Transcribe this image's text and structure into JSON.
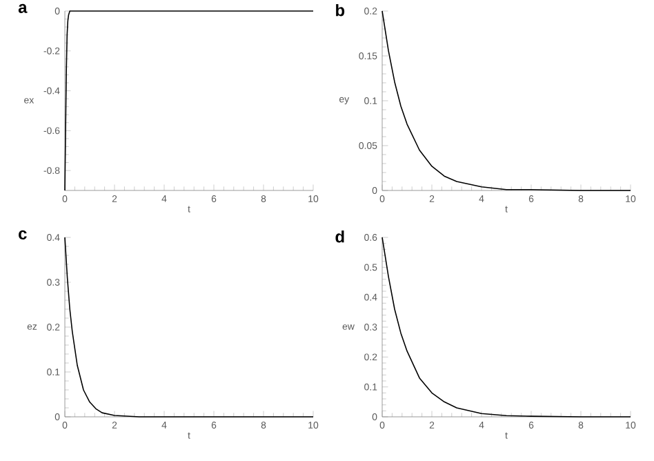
{
  "chart_data": [
    {
      "type": "line",
      "title": "a",
      "xlabel": "t",
      "ylabel": "ex",
      "color": "#000000",
      "xlim": [
        0,
        10
      ],
      "ylim": [
        -0.9,
        0
      ],
      "xticks": [
        0,
        2,
        4,
        6,
        8,
        10
      ],
      "yticks": [
        -0.8,
        -0.6,
        -0.4,
        -0.2,
        0
      ],
      "x": [
        0,
        0.03,
        0.06,
        0.09,
        0.12,
        0.15,
        0.2,
        1,
        5,
        10
      ],
      "values": [
        -0.9,
        -0.6,
        -0.3,
        -0.12,
        -0.05,
        -0.02,
        0,
        0,
        0,
        0
      ]
    },
    {
      "type": "line",
      "title": "b",
      "xlabel": "t",
      "ylabel": "ey",
      "color": "#000000",
      "xlim": [
        0,
        10
      ],
      "ylim": [
        0,
        0.2
      ],
      "xticks": [
        0,
        2,
        4,
        6,
        8,
        10
      ],
      "yticks": [
        0,
        0.05,
        0.1,
        0.15,
        0.2
      ],
      "x": [
        0,
        0.25,
        0.5,
        0.75,
        1,
        1.5,
        2,
        2.5,
        3,
        4,
        5,
        6,
        8,
        10
      ],
      "values": [
        0.2,
        0.156,
        0.121,
        0.094,
        0.074,
        0.045,
        0.027,
        0.016,
        0.01,
        0.004,
        0.001,
        0.001,
        0,
        0
      ]
    },
    {
      "type": "line",
      "title": "c",
      "xlabel": "t",
      "ylabel": "ez",
      "color": "#000000",
      "xlim": [
        0,
        10
      ],
      "ylim": [
        0,
        0.4
      ],
      "xticks": [
        0,
        2,
        4,
        6,
        8,
        10
      ],
      "yticks": [
        0,
        0.1,
        0.2,
        0.3,
        0.4
      ],
      "x": [
        0,
        0.1,
        0.2,
        0.3,
        0.5,
        0.75,
        1,
        1.25,
        1.5,
        2,
        3,
        10
      ],
      "values": [
        0.4,
        0.31,
        0.24,
        0.19,
        0.115,
        0.06,
        0.033,
        0.018,
        0.009,
        0.003,
        0,
        0
      ]
    },
    {
      "type": "line",
      "title": "d",
      "xlabel": "t",
      "ylabel": "ew",
      "color": "#000000",
      "xlim": [
        0,
        10
      ],
      "ylim": [
        0,
        0.6
      ],
      "xticks": [
        0,
        2,
        4,
        6,
        8,
        10
      ],
      "yticks": [
        0,
        0.1,
        0.2,
        0.3,
        0.4,
        0.5,
        0.6
      ],
      "x": [
        0,
        0.25,
        0.5,
        0.75,
        1,
        1.5,
        2,
        2.5,
        3,
        4,
        5,
        6,
        8,
        10
      ],
      "values": [
        0.6,
        0.47,
        0.36,
        0.28,
        0.22,
        0.13,
        0.08,
        0.05,
        0.03,
        0.011,
        0.004,
        0.002,
        0,
        0
      ]
    }
  ]
}
